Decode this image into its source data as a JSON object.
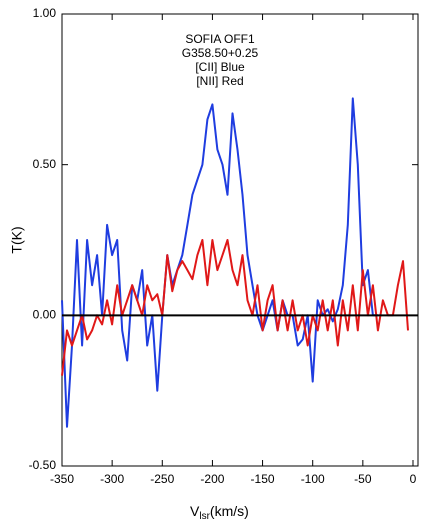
{
  "chart_data": {
    "type": "line",
    "annotations": [
      "SOFIA OFF1",
      "G358.50+0.25"
    ],
    "y_label": "T(K)",
    "x_label": {
      "main": "V",
      "sub": "lsr",
      "rest": "(km/s)"
    },
    "x": [
      -350,
      -345,
      -340,
      -335,
      -330,
      -325,
      -320,
      -315,
      -310,
      -305,
      -300,
      -295,
      -290,
      -285,
      -280,
      -275,
      -270,
      -265,
      -260,
      -255,
      -250,
      -245,
      -240,
      -235,
      -230,
      -225,
      -220,
      -215,
      -210,
      -205,
      -200,
      -195,
      -190,
      -185,
      -180,
      -175,
      -170,
      -165,
      -160,
      -155,
      -150,
      -145,
      -140,
      -135,
      -130,
      -125,
      -120,
      -115,
      -110,
      -105,
      -100,
      -95,
      -90,
      -85,
      -80,
      -75,
      -70,
      -65,
      -60,
      -55,
      -50,
      -45,
      -40,
      -35,
      -30,
      -25,
      -20,
      -15,
      -10,
      -5
    ],
    "series": [
      {
        "name": "[CII] Blue",
        "color": "#1f3de0",
        "values": [
          0.05,
          -0.37,
          -0.1,
          0.25,
          -0.1,
          0.25,
          0.1,
          0.2,
          0,
          0.3,
          0.2,
          0.25,
          -0.05,
          -0.15,
          0.1,
          0.05,
          0.15,
          -0.1,
          0,
          -0.25,
          0,
          0.2,
          0.1,
          0.15,
          0.2,
          0.3,
          0.4,
          0.45,
          0.5,
          0.65,
          0.7,
          0.55,
          0.5,
          0.4,
          0.67,
          0.55,
          0.4,
          0.2,
          0.1,
          0,
          -0.05,
          0,
          0.05,
          -0.05,
          0.05,
          0,
          0,
          -0.1,
          -0.08,
          0,
          -0.22,
          0.05,
          0,
          0.02,
          -0.02,
          0.02,
          0.1,
          0.3,
          0.72,
          0.5,
          0.1,
          0.15,
          0,
          0,
          null,
          null,
          null,
          null,
          null,
          null
        ]
      },
      {
        "name": "[NII] Red",
        "color": "#e01818",
        "values": [
          -0.2,
          -0.05,
          -0.1,
          -0.05,
          0,
          -0.08,
          -0.05,
          0,
          -0.03,
          0.05,
          -0.03,
          0.1,
          0,
          0.05,
          0.1,
          0.05,
          0,
          0.1,
          0.05,
          0.07,
          0,
          0.2,
          0.08,
          0.15,
          0.18,
          0.15,
          0.12,
          0.2,
          0.25,
          0.1,
          0.25,
          0.15,
          0.2,
          0.25,
          0.15,
          0.1,
          0.2,
          0.05,
          0,
          0.1,
          -0.05,
          0.05,
          0.1,
          -0.05,
          0.05,
          -0.05,
          0.05,
          -0.05,
          0,
          -0.1,
          0,
          -0.05,
          0.05,
          -0.05,
          0.05,
          -0.1,
          0.05,
          -0.05,
          0.1,
          -0.05,
          0.15,
          0,
          0.1,
          -0.05,
          0.05,
          0,
          0,
          0.1,
          0.18,
          -0.05
        ]
      }
    ],
    "xlim": [
      -350,
      5
    ],
    "ylim": [
      -0.5,
      1.0
    ],
    "xticks": [
      -350,
      -300,
      -250,
      -200,
      -150,
      -100,
      -50,
      0
    ],
    "yticks": [
      {
        "value": -0.5,
        "label": "-0.50"
      },
      {
        "value": 0,
        "label": "0.00"
      },
      {
        "value": 0.5,
        "label": "0.50"
      },
      {
        "value": 1.0,
        "label": "1.00"
      }
    ]
  }
}
